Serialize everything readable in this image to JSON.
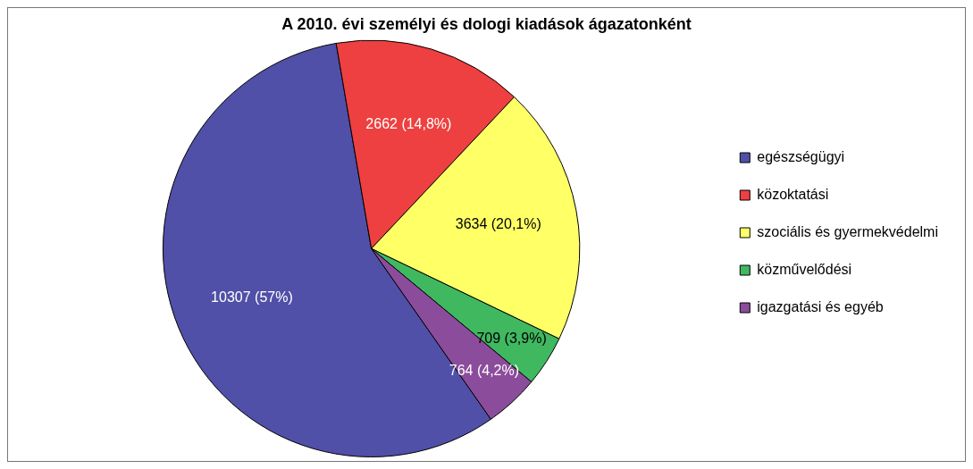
{
  "chart_data": {
    "type": "pie",
    "title": "A 2010. évi személyi és dologi kiadások ágazatonként",
    "categories": [
      "egészségügyi",
      "közoktatási",
      "szociális és gyermekvédelmi",
      "közművelődési",
      "igazgatási és egyéb"
    ],
    "values": [
      10307,
      2662,
      3634,
      709,
      764
    ],
    "colors": [
      "#5050a8",
      "#ee4040",
      "#ffff66",
      "#40b860",
      "#8c4c9c"
    ],
    "value_labels": [
      "10307 (57%)",
      "2662 (14,8%)",
      "3634 (20,1%)",
      "709 (3,9%)",
      "764 (4,2%)"
    ],
    "legend": "right"
  }
}
